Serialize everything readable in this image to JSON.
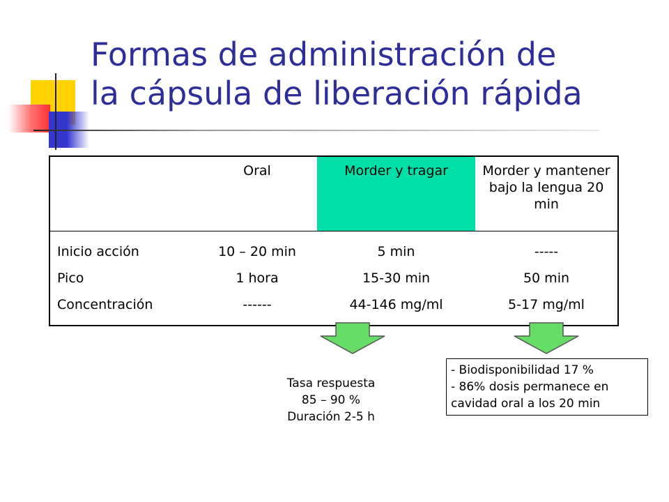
{
  "title_line1": "Formas de administración de",
  "title_line2": "la cápsula de liberación rápida",
  "table": {
    "headers": [
      "",
      "Oral",
      "Morder y tragar",
      "Morder y mantener bajo la lengua 20 min"
    ],
    "row_labels": [
      "Inicio acción",
      "Pico",
      "Concentración"
    ],
    "oral": [
      "10 – 20 min",
      "1 hora",
      "------"
    ],
    "morder_tragar": [
      "5 min",
      "15-30 min",
      "44-146 mg/ml"
    ],
    "morder_mantener": [
      "-----",
      "50 min",
      "5-17 mg/ml"
    ]
  },
  "note_left": [
    "Tasa respuesta",
    "85 – 90 %",
    "Duración 2-5 h"
  ],
  "note_right": [
    "- Biodisponibilidad 17 %",
    "- 86% dosis permanece en cavidad oral a los 20 min"
  ],
  "colors": {
    "title": "#2e2e9a",
    "highlight_header": "#00e0a8",
    "arrow_fill": "#66dd66",
    "deco_yellow": "#ffd200",
    "deco_red": "#ff3030",
    "deco_blue": "#3535d0"
  }
}
